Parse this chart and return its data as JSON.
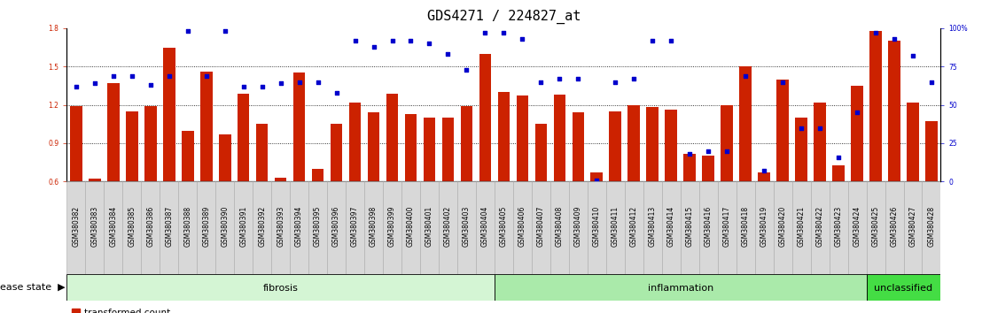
{
  "title": "GDS4271 / 224827_at",
  "samples": [
    "GSM380382",
    "GSM380383",
    "GSM380384",
    "GSM380385",
    "GSM380386",
    "GSM380387",
    "GSM380388",
    "GSM380389",
    "GSM380390",
    "GSM380391",
    "GSM380392",
    "GSM380393",
    "GSM380394",
    "GSM380395",
    "GSM380396",
    "GSM380397",
    "GSM380398",
    "GSM380399",
    "GSM380400",
    "GSM380401",
    "GSM380402",
    "GSM380403",
    "GSM380404",
    "GSM380405",
    "GSM380406",
    "GSM380407",
    "GSM380408",
    "GSM380409",
    "GSM380410",
    "GSM380411",
    "GSM380412",
    "GSM380413",
    "GSM380414",
    "GSM380415",
    "GSM380416",
    "GSM380417",
    "GSM380418",
    "GSM380419",
    "GSM380420",
    "GSM380421",
    "GSM380422",
    "GSM380423",
    "GSM380424",
    "GSM380425",
    "GSM380426",
    "GSM380427",
    "GSM380428"
  ],
  "bar_values": [
    1.19,
    0.62,
    1.37,
    1.15,
    1.19,
    1.65,
    1.0,
    1.46,
    0.97,
    1.29,
    1.05,
    0.63,
    1.45,
    0.7,
    1.05,
    1.22,
    1.14,
    1.29,
    1.13,
    1.1,
    1.1,
    1.19,
    1.6,
    1.3,
    1.27,
    1.05,
    1.28,
    1.14,
    0.67,
    1.15,
    1.2,
    1.18,
    1.16,
    0.82,
    0.8,
    1.2,
    1.5,
    0.67,
    1.4,
    1.1,
    1.22,
    0.73,
    1.35,
    1.78,
    1.7,
    1.22,
    1.07
  ],
  "dot_percentiles": [
    62,
    64,
    69,
    69,
    63,
    69,
    98,
    69,
    98,
    62,
    62,
    64,
    65,
    65,
    58,
    92,
    88,
    92,
    92,
    90,
    83,
    73,
    97,
    97,
    93,
    65,
    67,
    67,
    1,
    65,
    67,
    92,
    92,
    18,
    20,
    20,
    69,
    7,
    65,
    35,
    35,
    16,
    45,
    97,
    93,
    82,
    65
  ],
  "disease_groups": [
    {
      "label": "fibrosis",
      "start": 0,
      "end": 23,
      "color": "#d4f5d4"
    },
    {
      "label": "inflammation",
      "start": 23,
      "end": 43,
      "color": "#aaeaaa"
    },
    {
      "label": "unclassified",
      "start": 43,
      "end": 47,
      "color": "#44dd44"
    }
  ],
  "ylim_left": [
    0.6,
    1.8
  ],
  "yticks_left": [
    0.6,
    0.9,
    1.2,
    1.5,
    1.8
  ],
  "ylim_right": [
    0,
    100
  ],
  "yticks_right": [
    0,
    25,
    50,
    75,
    100
  ],
  "bar_color": "#cc2200",
  "dot_color": "#0000cc",
  "bar_width": 0.65,
  "title_fontsize": 11,
  "tick_fontsize": 5.5,
  "label_fontsize": 8,
  "legend_fontsize": 7.5
}
